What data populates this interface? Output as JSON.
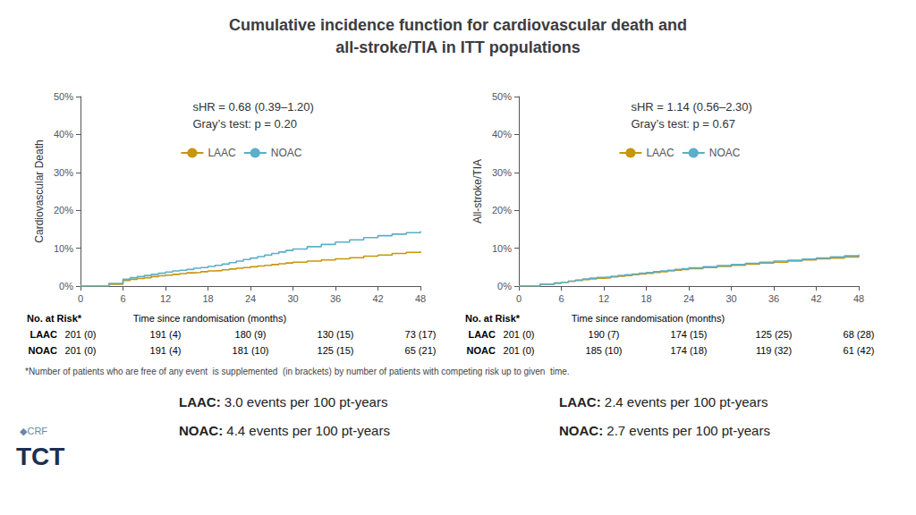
{
  "title": "Cumulative incidence function for cardiovascular death and\nall-stroke/TIA in ITT populations",
  "chart_data": [
    {
      "type": "step",
      "ylabel": "Cardiovascular Death",
      "xlabel": "Time since randomisation (months)",
      "annotations": [
        "sHR = 0.68 (0.39–1.20)",
        "Gray’s test: p = 0.20"
      ],
      "grid": false,
      "legend": "top",
      "xlim": [
        0,
        48
      ],
      "xticks": [
        0,
        6,
        12,
        18,
        24,
        30,
        36,
        42,
        48
      ],
      "ylim": [
        0,
        0.5
      ],
      "yticks": [
        {
          "value": 0,
          "label": "0%"
        },
        {
          "value": 0.1,
          "label": "10%"
        },
        {
          "value": 0.2,
          "label": "20%"
        },
        {
          "value": 0.3,
          "label": "30%"
        },
        {
          "value": 0.4,
          "label": "40%"
        },
        {
          "value": 0.5,
          "label": "50%"
        }
      ],
      "series": [
        {
          "name": "LAAC",
          "color": "#c8960c",
          "x": [
            0,
            4,
            6,
            7,
            8,
            9,
            10,
            11,
            12,
            13,
            14,
            15,
            16,
            17,
            18,
            19,
            20,
            21,
            22,
            23,
            24,
            25,
            26,
            27,
            28,
            29,
            30,
            32,
            34,
            36,
            38,
            40,
            42,
            44,
            46,
            48
          ],
          "values": [
            0.0,
            0.005,
            0.015,
            0.018,
            0.02,
            0.022,
            0.025,
            0.027,
            0.029,
            0.031,
            0.033,
            0.035,
            0.036,
            0.038,
            0.04,
            0.041,
            0.043,
            0.045,
            0.047,
            0.049,
            0.051,
            0.053,
            0.055,
            0.057,
            0.059,
            0.061,
            0.063,
            0.066,
            0.069,
            0.072,
            0.075,
            0.079,
            0.082,
            0.086,
            0.089,
            0.092
          ]
        },
        {
          "name": "NOAC",
          "color": "#5bafc9",
          "x": [
            0,
            4,
            6,
            7,
            8,
            9,
            10,
            11,
            12,
            13,
            14,
            15,
            16,
            17,
            18,
            19,
            20,
            21,
            22,
            23,
            24,
            25,
            26,
            27,
            28,
            29,
            30,
            32,
            34,
            36,
            38,
            40,
            42,
            44,
            46,
            48
          ],
          "values": [
            0.0,
            0.007,
            0.018,
            0.022,
            0.025,
            0.028,
            0.031,
            0.034,
            0.037,
            0.04,
            0.042,
            0.044,
            0.047,
            0.049,
            0.052,
            0.055,
            0.058,
            0.062,
            0.066,
            0.07,
            0.074,
            0.078,
            0.082,
            0.086,
            0.09,
            0.094,
            0.098,
            0.104,
            0.11,
            0.116,
            0.122,
            0.128,
            0.133,
            0.137,
            0.141,
            0.145
          ]
        }
      ],
      "risk_table": {
        "label": "No. at Risk*",
        "times": [
          0,
          12,
          24,
          36,
          48
        ],
        "values": [
          [
            "201 (0)",
            "191 (4)",
            "180 (9)",
            "130 (15)",
            "73 (17)"
          ],
          [
            "201 (0)",
            "191 (4)",
            "181 (10)",
            "125 (15)",
            "65 (21)"
          ]
        ]
      },
      "rates": [
        {
          "label": "LAAC:",
          "text": " 3.0 events per 100 pt-years"
        },
        {
          "label": "NOAC:",
          "text": " 4.4 events per 100 pt-years"
        }
      ]
    },
    {
      "type": "step",
      "ylabel": "All-stroke/TIA",
      "xlabel": "Time since randomisation (months)",
      "annotations": [
        "sHR = 1.14 (0.56–2.30)",
        "Gray’s test: p = 0.67"
      ],
      "grid": false,
      "legend": "top",
      "xlim": [
        0,
        48
      ],
      "xticks": [
        0,
        6,
        12,
        18,
        24,
        30,
        36,
        42,
        48
      ],
      "ylim": [
        0,
        0.5
      ],
      "yticks": [
        {
          "value": 0,
          "label": "0%"
        },
        {
          "value": 0.1,
          "label": "10%"
        },
        {
          "value": 0.2,
          "label": "20%"
        },
        {
          "value": 0.3,
          "label": "30%"
        },
        {
          "value": 0.4,
          "label": "40%"
        },
        {
          "value": 0.5,
          "label": "50%"
        }
      ],
      "series": [
        {
          "name": "LAAC",
          "color": "#c8960c",
          "x": [
            0,
            3,
            5,
            6,
            7,
            8,
            9,
            10,
            11,
            12,
            13,
            14,
            15,
            16,
            17,
            18,
            19,
            20,
            21,
            22,
            23,
            24,
            26,
            28,
            30,
            32,
            34,
            36,
            38,
            40,
            42,
            44,
            46,
            48
          ],
          "values": [
            0.0,
            0.005,
            0.008,
            0.01,
            0.013,
            0.015,
            0.017,
            0.019,
            0.021,
            0.022,
            0.024,
            0.026,
            0.028,
            0.03,
            0.032,
            0.034,
            0.036,
            0.038,
            0.04,
            0.042,
            0.044,
            0.046,
            0.049,
            0.052,
            0.055,
            0.058,
            0.061,
            0.063,
            0.066,
            0.069,
            0.072,
            0.074,
            0.077,
            0.08
          ]
        },
        {
          "name": "NOAC",
          "color": "#5bafc9",
          "x": [
            0,
            3,
            5,
            6,
            7,
            8,
            9,
            10,
            11,
            12,
            13,
            14,
            15,
            16,
            17,
            18,
            19,
            20,
            21,
            22,
            23,
            24,
            26,
            28,
            30,
            32,
            34,
            36,
            38,
            40,
            42,
            44,
            46,
            48
          ],
          "values": [
            0.0,
            0.005,
            0.008,
            0.01,
            0.013,
            0.016,
            0.019,
            0.021,
            0.023,
            0.024,
            0.026,
            0.028,
            0.03,
            0.032,
            0.034,
            0.036,
            0.038,
            0.04,
            0.042,
            0.044,
            0.046,
            0.048,
            0.051,
            0.054,
            0.057,
            0.06,
            0.063,
            0.066,
            0.068,
            0.071,
            0.074,
            0.077,
            0.08,
            0.083
          ]
        }
      ],
      "risk_table": {
        "label": "No. at Risk*",
        "times": [
          0,
          12,
          24,
          36,
          48
        ],
        "values": [
          [
            "201 (0)",
            "190 (7)",
            "174 (15)",
            "125 (25)",
            "68 (28)"
          ],
          [
            "201 (0)",
            "185 (10)",
            "174 (18)",
            "119 (32)",
            "61 (42)"
          ]
        ]
      },
      "rates": [
        {
          "label": "LAAC:",
          "text": " 2.4 events per 100 pt-years"
        },
        {
          "label": "NOAC:",
          "text": " 2.7 events per 100 pt-years"
        }
      ]
    }
  ],
  "footnote": "*Number of patients who are free of any event  is supplemented  (in brackets) by number of patients with competing risk up to given  time.",
  "logos": [
    "◆CRF",
    "TCT"
  ]
}
